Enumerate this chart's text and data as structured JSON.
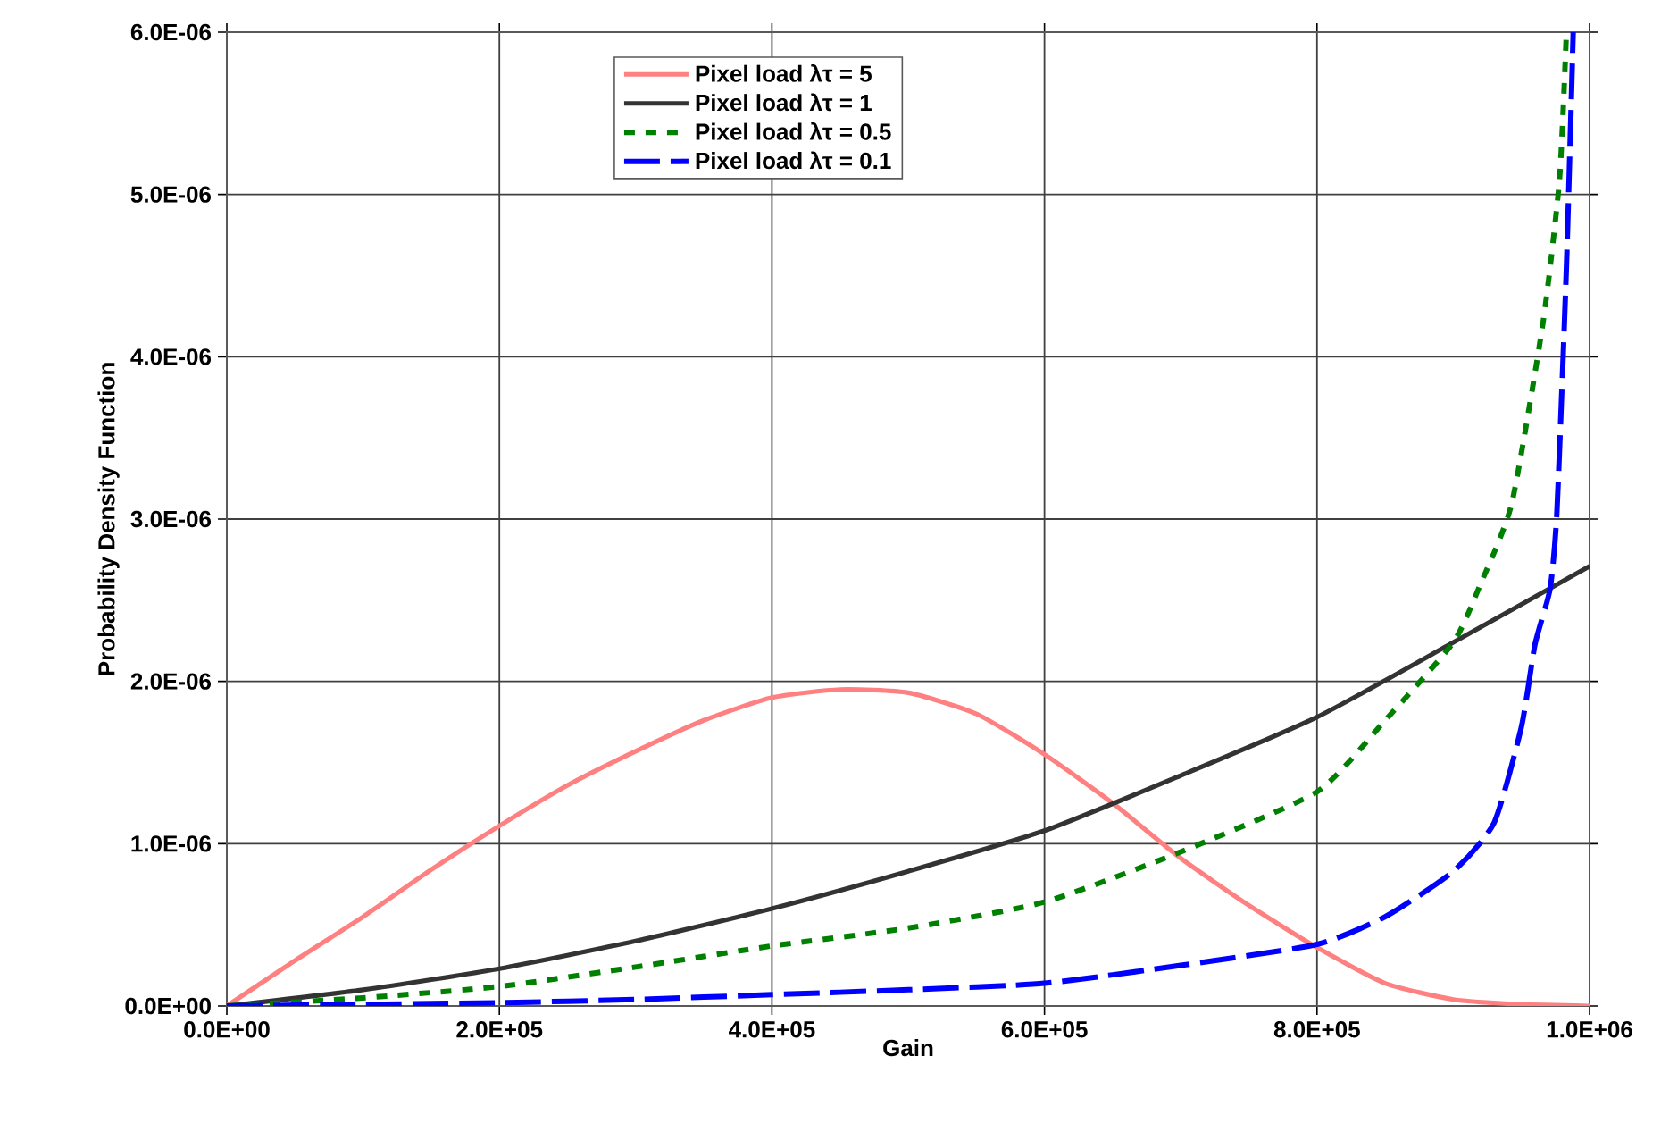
{
  "chart_data": {
    "type": "line",
    "xlabel": "Gain",
    "ylabel": "Probability Density Function",
    "xlim": [
      0,
      1000000
    ],
    "ylim": [
      0,
      6e-06
    ],
    "xticks": [
      {
        "value": 0,
        "label": "0.0E+00"
      },
      {
        "value": 200000,
        "label": "2.0E+05"
      },
      {
        "value": 400000,
        "label": "4.0E+05"
      },
      {
        "value": 600000,
        "label": "6.0E+05"
      },
      {
        "value": 800000,
        "label": "8.0E+05"
      },
      {
        "value": 1000000,
        "label": "1.0E+06"
      }
    ],
    "yticks": [
      {
        "value": 0,
        "label": "0.0E+00"
      },
      {
        "value": 1e-06,
        "label": "1.0E-06"
      },
      {
        "value": 2e-06,
        "label": "2.0E-06"
      },
      {
        "value": 3e-06,
        "label": "3.0E-06"
      },
      {
        "value": 4e-06,
        "label": "4.0E-06"
      },
      {
        "value": 5e-06,
        "label": "5.0E-06"
      },
      {
        "value": 6e-06,
        "label": "6.0E-06"
      }
    ],
    "grid": true,
    "legend": "top",
    "series": [
      {
        "name": "Pixel load λτ =  5",
        "color": "#ff8080",
        "line_style": "solid",
        "x": [
          0,
          50000,
          100000,
          150000,
          200000,
          250000,
          300000,
          350000,
          400000,
          450000,
          500000,
          550000,
          600000,
          650000,
          700000,
          750000,
          800000,
          850000,
          900000,
          950000,
          1000000
        ],
        "values": [
          0,
          2.8e-07,
          5.5e-07,
          8.4e-07,
          1.11e-06,
          1.36e-06,
          1.57e-06,
          1.76e-06,
          1.9e-06,
          1.95e-06,
          1.93e-06,
          1.8e-06,
          1.55e-06,
          1.25e-06,
          9.1e-07,
          6.2e-07,
          3.6e-07,
          1.4e-07,
          4e-08,
          1e-08,
          0
        ]
      },
      {
        "name": "Pixel load λτ =  1",
        "color": "#333333",
        "line_style": "solid",
        "x": [
          0,
          100000,
          200000,
          300000,
          400000,
          500000,
          600000,
          700000,
          800000,
          900000,
          1000000
        ],
        "values": [
          0,
          1e-07,
          2.3e-07,
          4e-07,
          6e-07,
          8.3e-07,
          1.08e-06,
          1.42e-06,
          1.78e-06,
          2.24e-06,
          2.71e-06
        ]
      },
      {
        "name": "Pixel load λτ =  0.5",
        "color": "#008000",
        "line_style": "dotted",
        "x": [
          0,
          100000,
          200000,
          300000,
          400000,
          500000,
          600000,
          700000,
          800000,
          850000,
          900000,
          920000,
          943000,
          966000,
          978000,
          983000
        ],
        "values": [
          0,
          5e-08,
          1.2e-07,
          2.4e-07,
          3.7e-07,
          4.8e-07,
          6.4e-07,
          9.5e-07,
          1.32e-06,
          1.76e-06,
          2.24e-06,
          2.6e-06,
          3.1e-06,
          4.22e-06,
          5.1e-06,
          6e-06
        ]
      },
      {
        "name": "Pixel load λτ =  0.1",
        "color": "#0000ff",
        "line_style": "dashed",
        "x": [
          0,
          100000,
          200000,
          300000,
          400000,
          500000,
          600000,
          700000,
          800000,
          850000,
          900000,
          930000,
          950000,
          960000,
          971000,
          976000,
          983000,
          988000
        ],
        "values": [
          0,
          1e-08,
          2e-08,
          4e-08,
          7e-08,
          1e-07,
          1.4e-07,
          2.5e-07,
          3.8e-07,
          5.5e-07,
          8.3e-07,
          1.13e-06,
          1.72e-06,
          2.23e-06,
          2.57e-06,
          3.04e-06,
          4.55e-06,
          6e-06
        ]
      }
    ]
  }
}
